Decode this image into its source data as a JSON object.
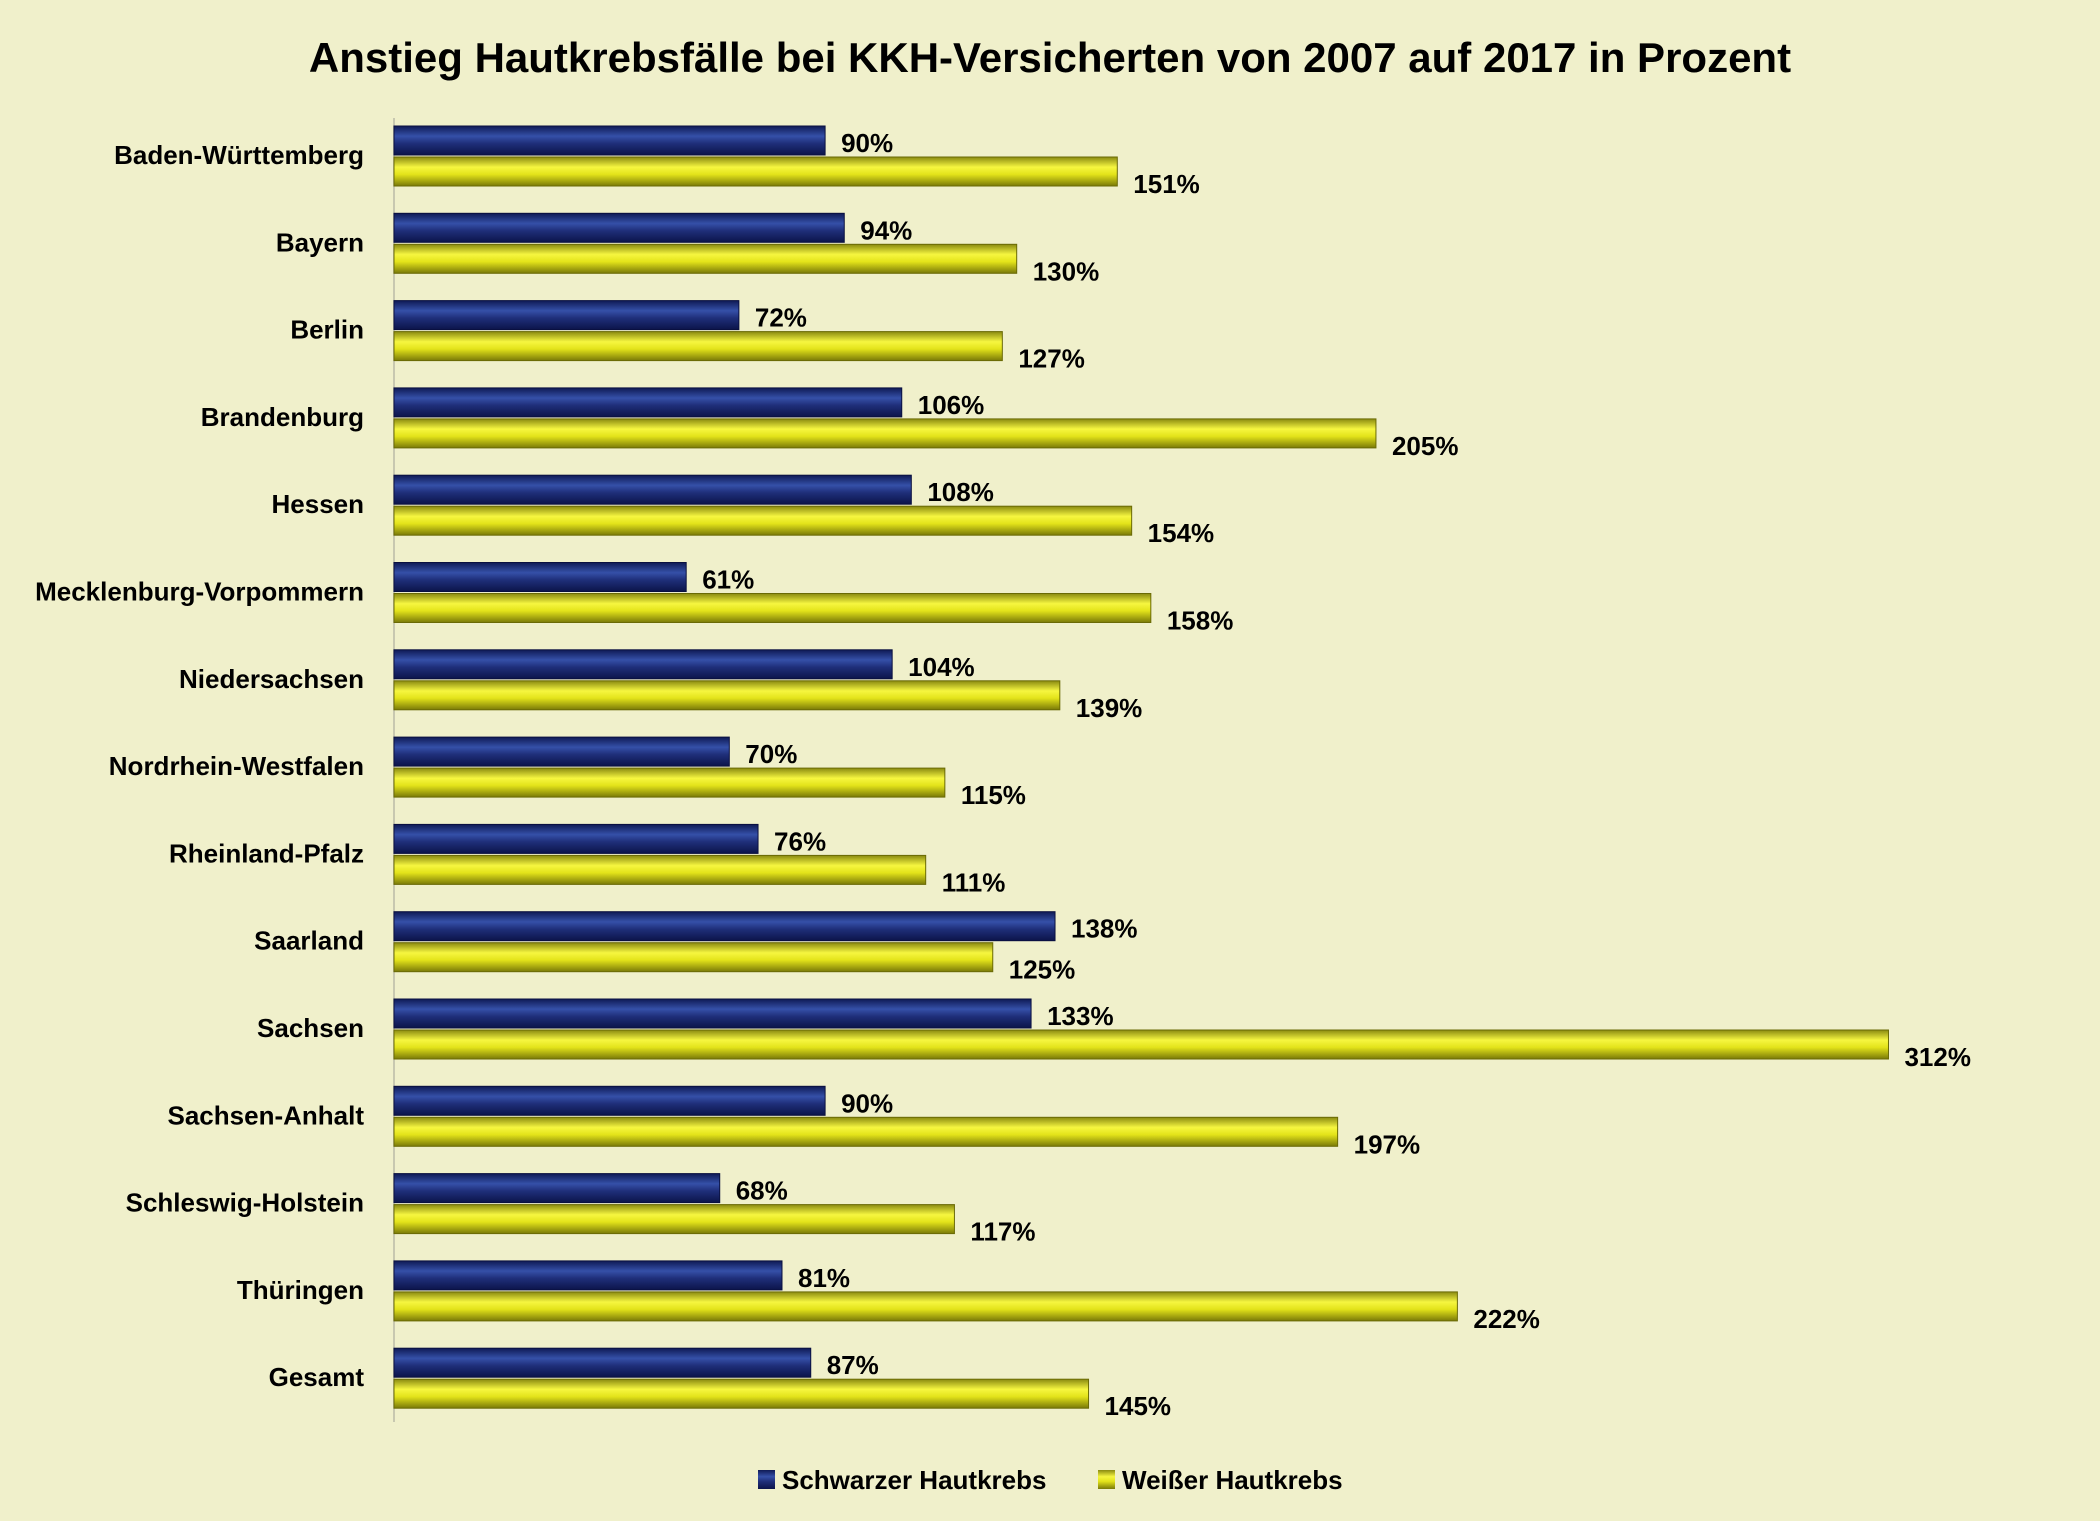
{
  "chart_data": {
    "type": "bar",
    "orientation": "horizontal",
    "title": "Anstieg Hautkrebsfälle bei KKH-Versicherten von 2007 auf 2017 in Prozent",
    "categories": [
      "Baden-Württemberg",
      "Bayern",
      "Berlin",
      "Brandenburg",
      "Hessen",
      "Mecklenburg-Vorpommern",
      "Niedersachsen",
      "Nordrhein-Westfalen",
      "Rheinland-Pfalz",
      "Saarland",
      "Sachsen",
      "Sachsen-Anhalt",
      "Schleswig-Holstein",
      "Thüringen",
      "Gesamt"
    ],
    "series": [
      {
        "name": "Schwarzer Hautkrebs",
        "color": "#1f2f7a",
        "values": [
          90,
          94,
          72,
          106,
          108,
          61,
          104,
          70,
          76,
          138,
          133,
          90,
          68,
          81,
          87
        ]
      },
      {
        "name": "Weißer Hautkrebs",
        "color": "#e3e31a",
        "values": [
          151,
          130,
          127,
          205,
          154,
          158,
          139,
          115,
          111,
          125,
          312,
          197,
          117,
          222,
          145
        ]
      }
    ],
    "value_suffix": "%",
    "xlim": [
      0,
      340
    ],
    "grid": false,
    "value_axis_visible": false,
    "legend": "bottom",
    "background": "#f0f0cb"
  }
}
